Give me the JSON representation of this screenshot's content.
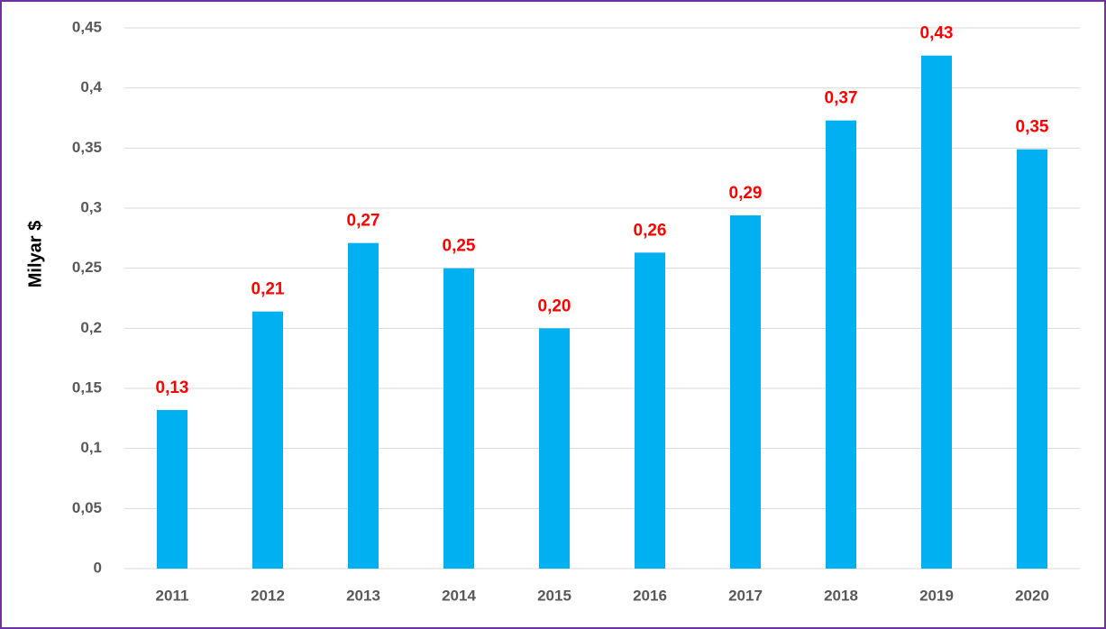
{
  "chart_data": {
    "type": "bar",
    "y_label": "Milyar $",
    "categories": [
      "2011",
      "2012",
      "2013",
      "2014",
      "2015",
      "2016",
      "2017",
      "2018",
      "2019",
      "2020"
    ],
    "values": [
      0.132,
      0.214,
      0.271,
      0.25,
      0.2,
      0.263,
      0.294,
      0.373,
      0.427,
      0.349
    ],
    "value_labels": [
      "0,13",
      "0,21",
      "0,27",
      "0,25",
      "0,20",
      "0,26",
      "0,29",
      "0,37",
      "0,43",
      "0,35"
    ],
    "color": "#00b0f0",
    "label_color": "#ff0000",
    "ylim": [
      0,
      0.45
    ],
    "yticks": [
      0,
      {
        "value": 0.05,
        "label": "0,05"
      },
      {
        "value": 0.1,
        "label": "0,1"
      },
      {
        "value": 0.15,
        "label": "0,15"
      },
      {
        "value": 0.2,
        "label": "0,2"
      },
      {
        "value": 0.25,
        "label": "0,25"
      },
      {
        "value": 0.3,
        "label": "0,3"
      },
      {
        "value": 0.35,
        "label": "0,35"
      },
      {
        "value": 0.4,
        "label": "0,4"
      },
      {
        "value": 0.45,
        "label": "0,45"
      }
    ],
    "grid": true
  }
}
